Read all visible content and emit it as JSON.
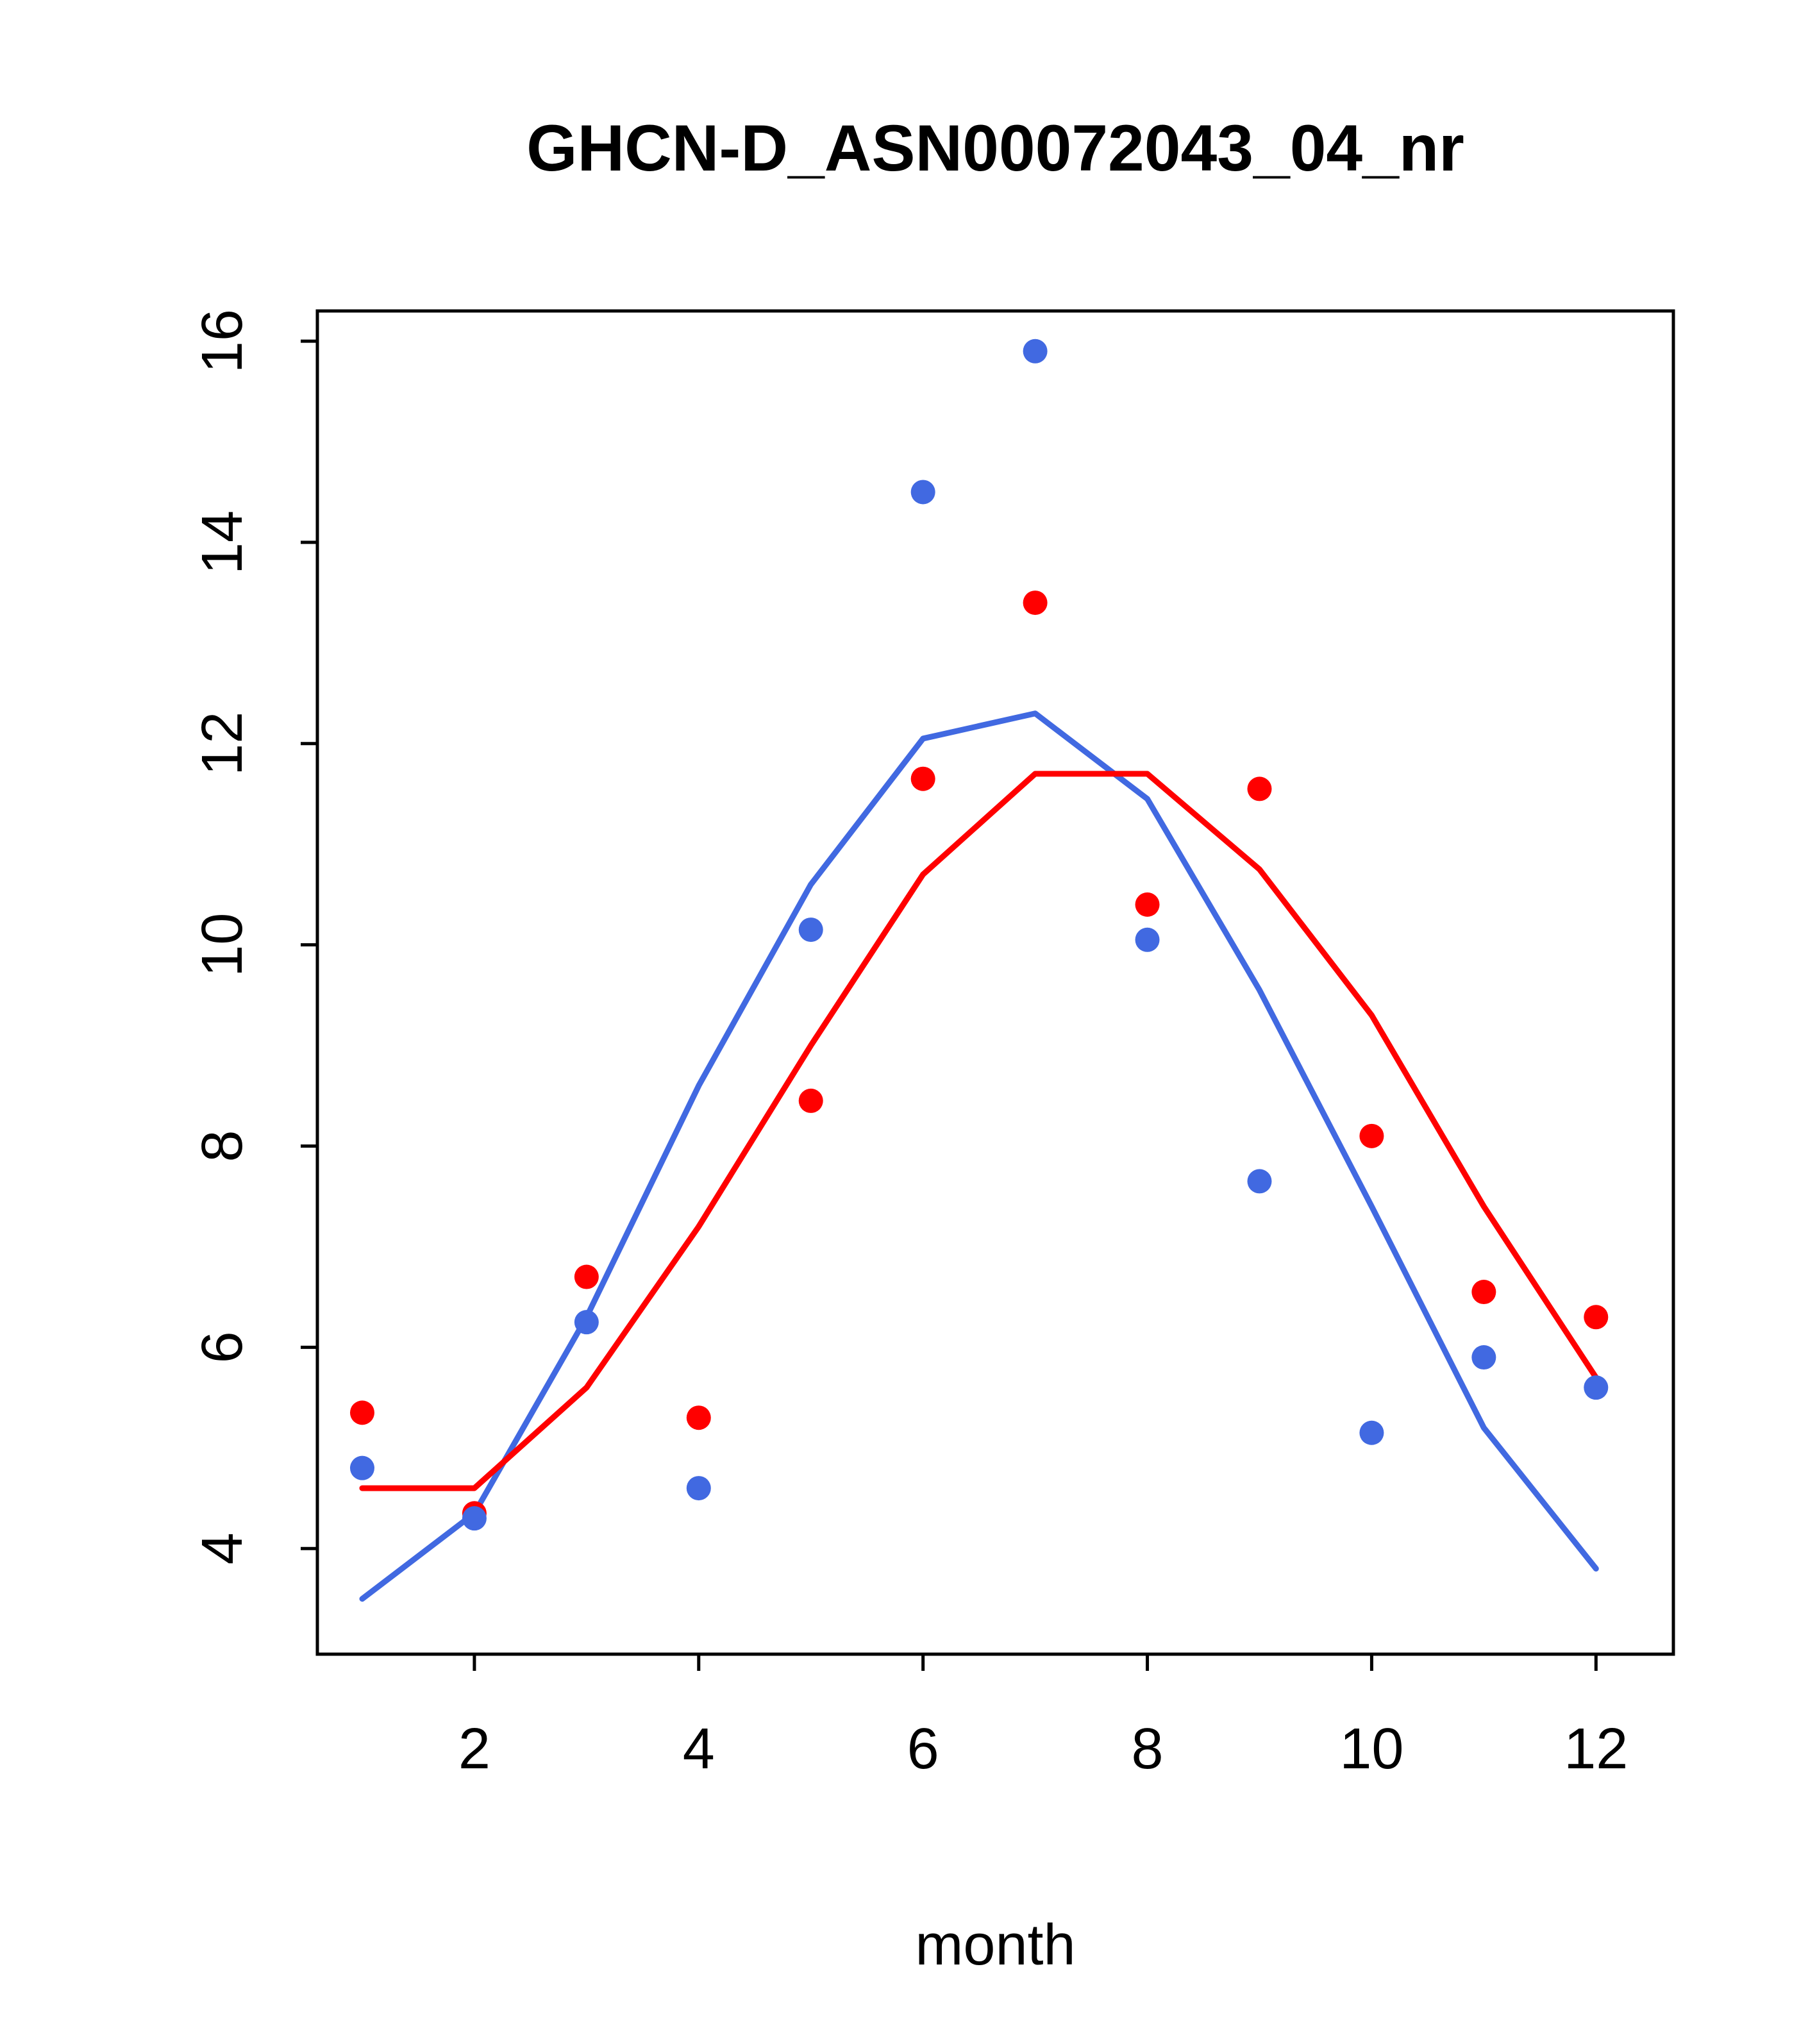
{
  "title": "GHCN-D_ASN00072043_04_nr",
  "x_axis_label": "month",
  "colors": {
    "blue": "#4169e1",
    "red": "#ff0000",
    "axis": "#000000",
    "background": "#ffffff"
  },
  "chart_data": {
    "type": "scatter",
    "title": "GHCN-D_ASN00072043_04_nr",
    "xlabel": "month",
    "ylabel": "",
    "xlim": [
      0.6,
      12.69
    ],
    "ylim": [
      2.95,
      16.3
    ],
    "xticks": [
      2,
      4,
      6,
      8,
      10,
      12
    ],
    "yticks": [
      4,
      6,
      8,
      10,
      12,
      14,
      16
    ],
    "grid": false,
    "legend": "none",
    "x": [
      1,
      2,
      3,
      4,
      5,
      6,
      7,
      8,
      9,
      10,
      11,
      12
    ],
    "series": [
      {
        "name": "smooth-blue",
        "style": "line",
        "color": "#4169e1",
        "values": [
          3.5,
          4.35,
          6.3,
          8.6,
          10.6,
          12.05,
          12.3,
          11.45,
          9.55,
          7.4,
          5.2,
          3.8
        ]
      },
      {
        "name": "smooth-red",
        "style": "line",
        "color": "#ff0000",
        "values": [
          4.6,
          4.6,
          5.6,
          7.2,
          9.0,
          10.7,
          11.7,
          11.7,
          10.75,
          9.3,
          7.4,
          5.7
        ]
      },
      {
        "name": "observations-red",
        "style": "points",
        "color": "#ff0000",
        "values": [
          5.35,
          4.35,
          6.7,
          5.3,
          8.45,
          11.65,
          13.4,
          10.4,
          11.55,
          8.1,
          6.55,
          6.3
        ]
      },
      {
        "name": "observations-blue",
        "style": "points",
        "color": "#4169e1",
        "values": [
          4.8,
          4.3,
          6.25,
          4.6,
          10.15,
          14.5,
          15.9,
          10.05,
          7.65,
          5.15,
          5.9,
          5.6
        ]
      }
    ]
  }
}
